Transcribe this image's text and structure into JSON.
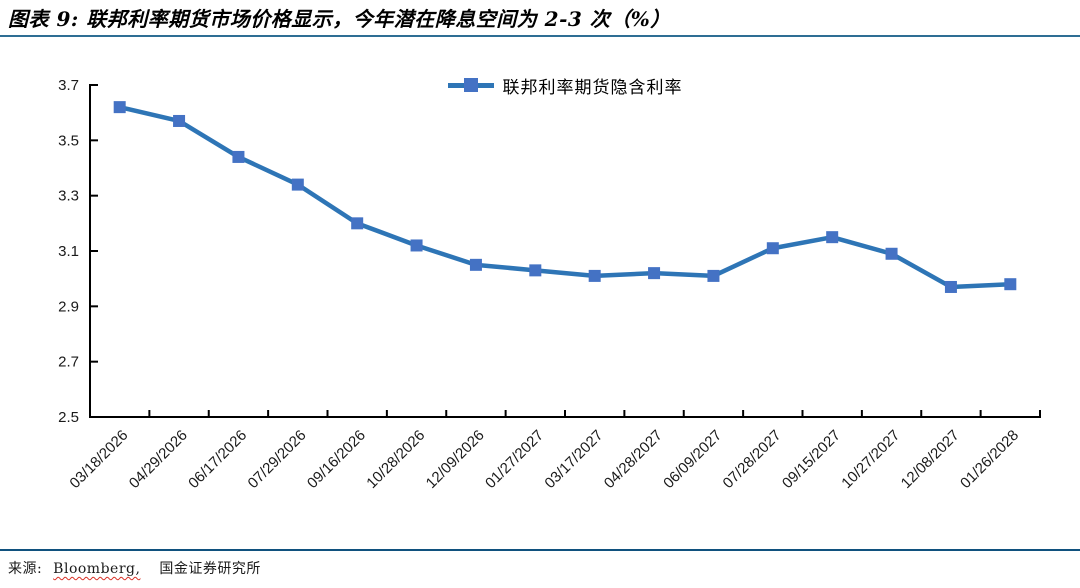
{
  "header": {
    "title": "图表 9:  联邦利率期货市场价格显示，今年潜在降息空间为 2-3 次（%）"
  },
  "chart_data": {
    "type": "line",
    "legend_label": "联邦利率期货隐含利率",
    "legend_position": "top-center",
    "categories": [
      "03/18/2026",
      "04/29/2026",
      "06/17/2026",
      "07/29/2026",
      "09/16/2026",
      "10/28/2026",
      "12/09/2026",
      "01/27/2027",
      "03/17/2027",
      "04/28/2027",
      "06/09/2027",
      "07/28/2027",
      "09/15/2027",
      "10/27/2027",
      "12/08/2027",
      "01/26/2028"
    ],
    "values": [
      3.62,
      3.57,
      3.44,
      3.34,
      3.2,
      3.12,
      3.05,
      3.03,
      3.01,
      3.02,
      3.01,
      3.11,
      3.15,
      3.09,
      2.97,
      2.98
    ],
    "title": "",
    "xlabel": "",
    "ylabel": "",
    "ylim": [
      2.5,
      3.7
    ],
    "yticks": [
      "2.5",
      "2.7",
      "2.9",
      "3.1",
      "3.3",
      "3.5",
      "3.7"
    ],
    "grid": false,
    "marker": "square",
    "line_color": "#2E75B6",
    "marker_color": "#4472C4",
    "axis_color": "#000000"
  },
  "footer": {
    "prefix": "来源:",
    "vendor": "Bloomberg,",
    "institute": "国金证券研究所"
  }
}
